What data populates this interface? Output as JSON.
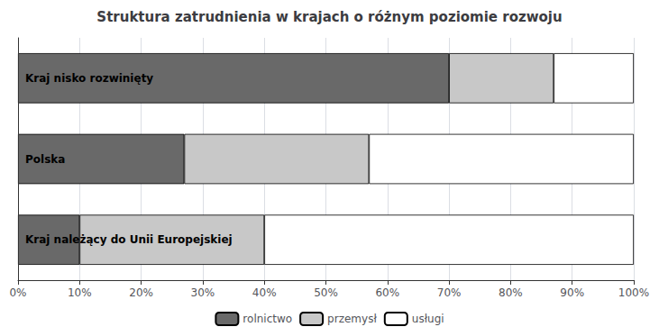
{
  "chart_data": {
    "type": "bar",
    "orientation": "horizontal",
    "stacked": true,
    "title": "Struktura zatrudnienia w krajach o różnym poziomie rozwoju",
    "categories": [
      "Kraj nisko rozwinięty",
      "Polska",
      "Kraj należący do Unii Europejskiej"
    ],
    "series": [
      {
        "name": "rolnictwo",
        "color": "#696969",
        "values": [
          70,
          27,
          10
        ]
      },
      {
        "name": "przemysł",
        "color": "#c8c8c8",
        "values": [
          17,
          30,
          30
        ]
      },
      {
        "name": "usługi",
        "color": "#ffffff",
        "values": [
          13,
          43,
          60
        ]
      }
    ],
    "xlim": [
      0,
      100
    ],
    "xticks": [
      {
        "value": 0,
        "label": "0%"
      },
      {
        "value": 10,
        "label": "10%"
      },
      {
        "value": 20,
        "label": "20%"
      },
      {
        "value": 30,
        "label": "30%"
      },
      {
        "value": 40,
        "label": "40%"
      },
      {
        "value": 50,
        "label": "50%"
      },
      {
        "value": 60,
        "label": "60%"
      },
      {
        "value": 70,
        "label": "70%"
      },
      {
        "value": 80,
        "label": "80%"
      },
      {
        "value": 90,
        "label": "90%"
      },
      {
        "value": 100,
        "label": "100%"
      }
    ],
    "grid": true,
    "legend": "bottom"
  }
}
